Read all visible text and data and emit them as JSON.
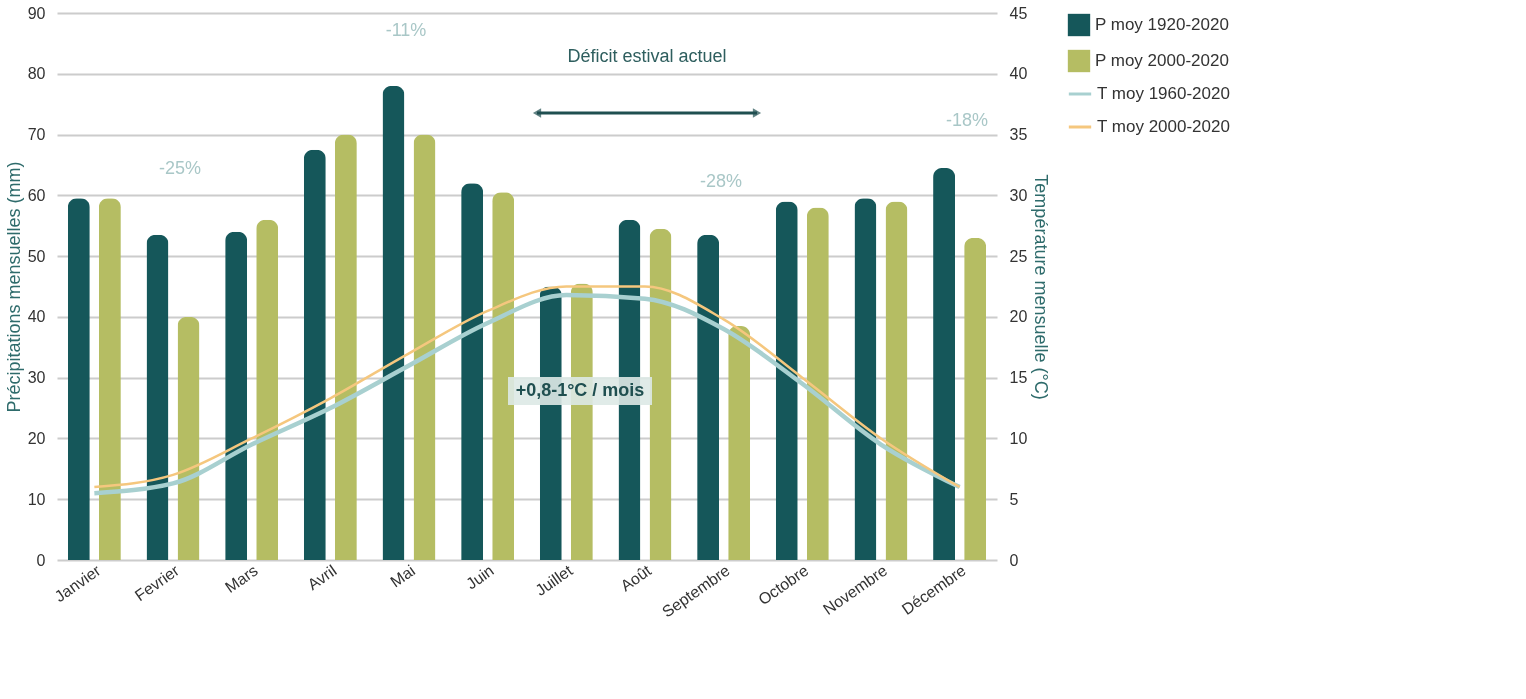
{
  "chart_data": {
    "type": "bar",
    "categories": [
      "Janvier",
      "Fevrier",
      "Mars",
      "Avril",
      "Mai",
      "Juin",
      "Juillet",
      "Août",
      "Septembre",
      "Octobre",
      "Novembre",
      "Décembre"
    ],
    "ylabel": "Précipitations mensuelles (mm)",
    "y2label": "Température mensuelle (°C)",
    "ylim": [
      0,
      90
    ],
    "yticks": [
      0,
      10,
      20,
      30,
      40,
      50,
      60,
      70,
      80,
      90
    ],
    "y2lim": [
      0,
      45
    ],
    "y2ticks": [
      0,
      5,
      10,
      15,
      20,
      25,
      30,
      35,
      40,
      45
    ],
    "grid": "y",
    "legend": "top right",
    "marker": "none",
    "line_style": "solid",
    "series": [
      {
        "name": "P moy 1920-2020",
        "color": "#15575a",
        "values": [
          59.5,
          53.5,
          54,
          67.5,
          78,
          62,
          45,
          56,
          53.5,
          59,
          59.5,
          64.5
        ]
      },
      {
        "name": "P moy 2000-2020",
        "color": "#b5bd63",
        "values": [
          59.5,
          40,
          56,
          70,
          70,
          60.5,
          45.5,
          54.5,
          38.5,
          58,
          59,
          53
        ]
      },
      {
        "name": "T moy 1960-2020",
        "color": "#a8d0d0",
        "type": "line",
        "axis": "y2",
        "values": [
          5.5,
          6.3,
          9.5,
          12.5,
          16,
          19.5,
          21.8,
          21.5,
          19,
          14.5,
          9.5,
          6
        ]
      },
      {
        "name": "T moy 2000-2020",
        "color": "#f5c77e",
        "type": "line",
        "axis": "y2",
        "values": [
          6,
          7,
          10,
          13.3,
          17,
          20.5,
          22.5,
          22.5,
          19.8,
          15,
          10,
          6
        ]
      }
    ],
    "annotations": [
      "-25%",
      "-11%",
      "-28%",
      "-18%",
      "Déficit estival actuel",
      "+0,8-1°C / mois"
    ]
  }
}
